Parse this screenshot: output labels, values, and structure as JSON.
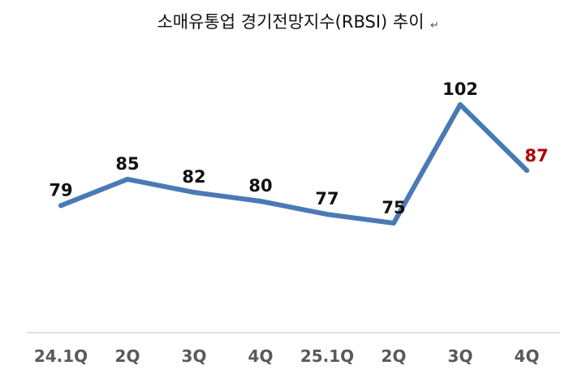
{
  "chart_data": {
    "type": "line",
    "title": "소매유통업 경기전망지수(RBSI) 추이",
    "title_mark": "↵",
    "categories": [
      "24.1Q",
      "2Q",
      "3Q",
      "4Q",
      "25.1Q",
      "2Q",
      "3Q",
      "4Q"
    ],
    "series": [
      {
        "values": [
          79,
          85,
          82,
          80,
          77,
          75,
          102,
          87
        ],
        "color": "#4a7ab5"
      }
    ],
    "data_label_color": "#111111",
    "highlight_label_color": "#b00000",
    "highlight_index": 7,
    "ylim": [
      55,
      112
    ],
    "grid": false,
    "xlabel": "",
    "ylabel": ""
  }
}
